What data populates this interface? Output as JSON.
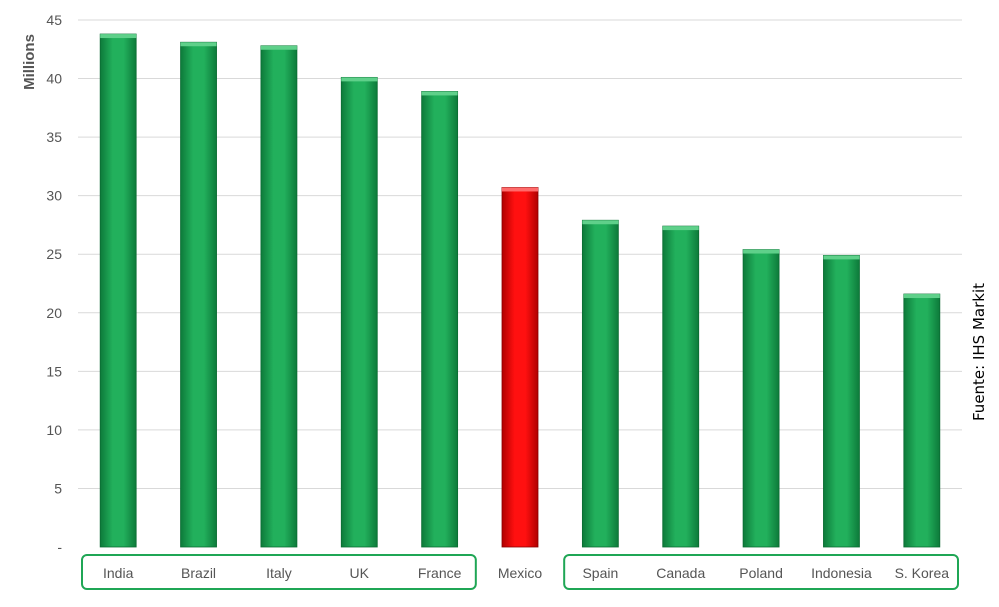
{
  "chart_data": {
    "type": "bar",
    "title": "",
    "xlabel": "",
    "ylabel": "Millions",
    "ylim": [
      0,
      45
    ],
    "y_ticks": [
      "-",
      "5",
      "10",
      "15",
      "20",
      "25",
      "30",
      "35",
      "40",
      "45"
    ],
    "categories": [
      "India",
      "Brazil",
      "Italy",
      "UK",
      "France",
      "Mexico",
      "Spain",
      "Canada",
      "Poland",
      "Indonesia",
      "S. Korea"
    ],
    "values": [
      43.8,
      43.1,
      42.8,
      40.1,
      38.9,
      30.7,
      27.9,
      27.4,
      25.4,
      24.9,
      21.6
    ],
    "highlight_category": "Mexico",
    "grid": true,
    "legend": "none",
    "source_note": "Fuente: IHS Markit",
    "colors": {
      "bar": "#1fa655",
      "highlight": "#ff0000",
      "group_border": "#1fa655",
      "grid": "#d9d9d9"
    },
    "groups": [
      {
        "categories": [
          "India",
          "Brazil",
          "Italy",
          "UK",
          "France"
        ]
      },
      {
        "categories": [
          "Spain",
          "Canada",
          "Poland",
          "Indonesia",
          "S. Korea"
        ]
      }
    ]
  }
}
